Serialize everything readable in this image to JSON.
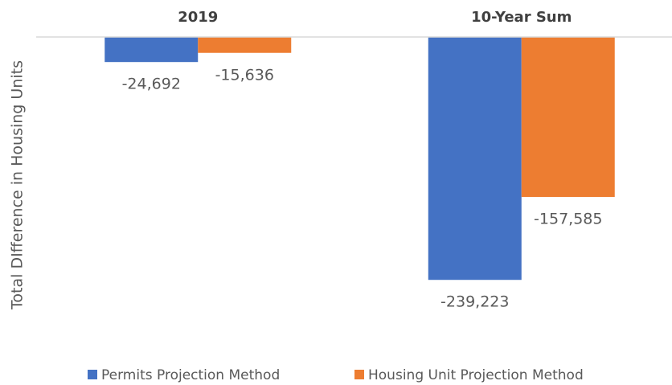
{
  "chart_data": {
    "type": "bar",
    "y_axis_label": "Total DIfference in Housing Units",
    "categories": [
      "2019",
      "10-Year Sum"
    ],
    "series": [
      {
        "name": "Permits Projection Method",
        "color": "#4472c4",
        "values": [
          -24692,
          -239223
        ],
        "value_labels": [
          "-24,692",
          "-239,223"
        ]
      },
      {
        "name": "Housing Unit Projection Method",
        "color": "#ed7d31",
        "values": [
          -15636,
          -157585
        ],
        "value_labels": [
          "-15,636",
          "-157,585"
        ]
      }
    ],
    "ylim": [
      -300000,
      0
    ],
    "legend": "bottom"
  }
}
